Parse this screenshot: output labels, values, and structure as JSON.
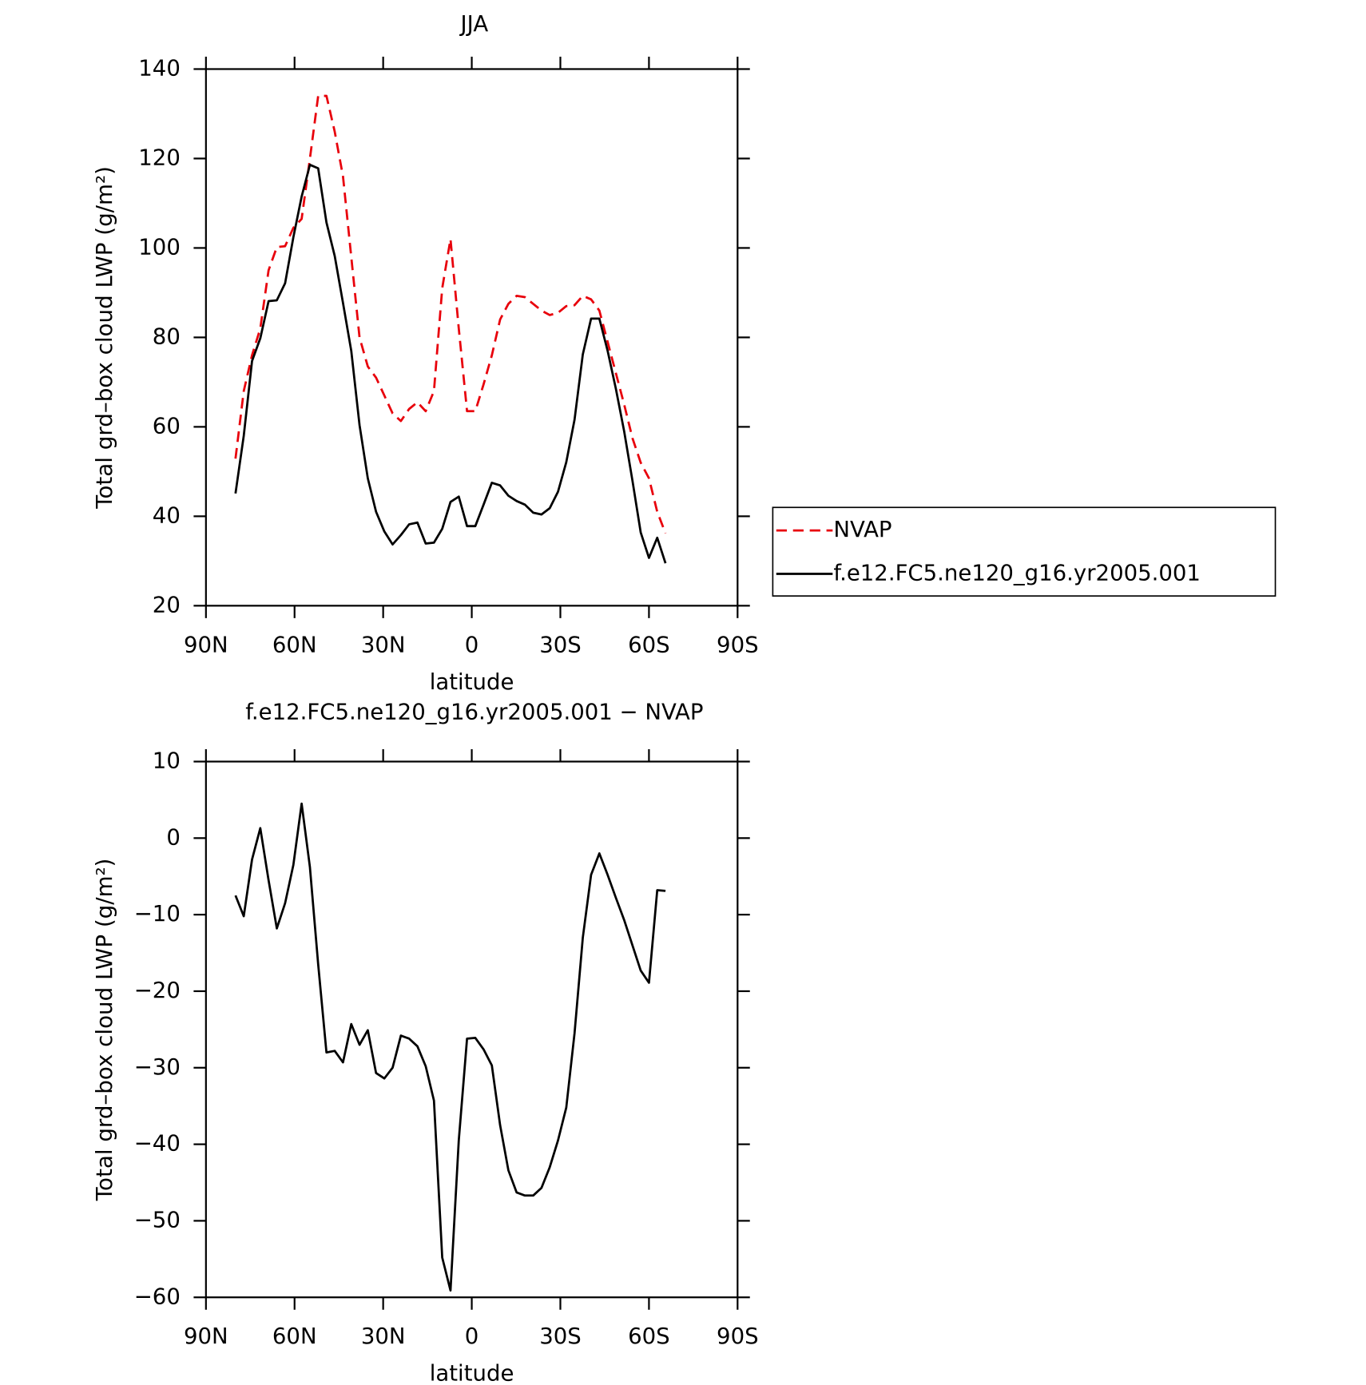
{
  "chart_data": [
    {
      "type": "line",
      "title": "JJA",
      "x_label": "latitude",
      "y_label": "Total grd–box cloud LWP (g/m²)",
      "x": [
        80,
        77.2,
        74.4,
        71.6,
        68.8,
        66,
        63.2,
        60.4,
        57.6,
        54.8,
        52,
        49.2,
        46.4,
        43.6,
        40.8,
        38,
        35.2,
        32.4,
        29.6,
        26.8,
        24,
        21.2,
        18.4,
        15.6,
        12.8,
        10,
        7.2,
        4.4,
        1.6,
        -1.2,
        -4,
        -6.8,
        -9.6,
        -12.4,
        -15.2,
        -18,
        -20.8,
        -23.6,
        -26.4,
        -29.2,
        -32,
        -34.8,
        -37.6,
        -40.4,
        -43.2,
        -46,
        -48.8,
        -51.6,
        -54.4,
        -57.2,
        -60,
        -62.8,
        -65.6
      ],
      "series": [
        {
          "name": "NVAP",
          "color": "#e8000b",
          "dashed": true,
          "values": [
            52.9,
            68,
            76,
            82,
            95,
            100.2,
            100.4,
            104.5,
            106.5,
            120,
            134,
            134,
            126,
            116,
            98,
            80,
            73.5,
            71,
            67,
            63,
            61.3,
            64,
            65.5,
            63.5,
            68,
            91,
            102,
            82,
            63.5,
            63.5,
            69.5,
            76,
            84,
            87.5,
            89.3,
            89,
            87.5,
            86,
            85,
            85.5,
            87,
            87.2,
            89.3,
            88.5,
            86,
            79,
            72,
            65,
            57.5,
            52,
            48.5,
            41,
            36.2
          ]
        },
        {
          "name": "f.e12.FC5.ne120_g16.yr2005.001",
          "color": "#000000",
          "dashed": false,
          "values": [
            45.1,
            58.0,
            74.7,
            79.8,
            88.1,
            88.3,
            92.1,
            102.4,
            111.5,
            118.6,
            117.8,
            105.7,
            98.2,
            87.7,
            77.0,
            60.4,
            48.5,
            41.0,
            36.6,
            33.7,
            35.8,
            38.2,
            38.6,
            33.9,
            34.1,
            37.2,
            43.2,
            44.4,
            37.8,
            37.8,
            42.6,
            47.5,
            46.9,
            44.6,
            43.4,
            42.6,
            40.8,
            40.4,
            41.8,
            45.5,
            52.1,
            61.6,
            76.2,
            84.2,
            84.2,
            77.0,
            68.5,
            59.0,
            48.0,
            36.4,
            30.7,
            35.2,
            29.5
          ]
        }
      ],
      "xlim": [
        90,
        -90
      ],
      "xticks": [
        {
          "value": 90,
          "label": "90N"
        },
        {
          "value": 60,
          "label": "60N"
        },
        {
          "value": 30,
          "label": "30N"
        },
        0,
        {
          "value": -30,
          "label": "30S"
        },
        {
          "value": -60,
          "label": "60S"
        },
        {
          "value": -90,
          "label": "90S"
        }
      ],
      "ylim": [
        20,
        140
      ],
      "yticks": [
        20,
        40,
        60,
        80,
        100,
        120,
        140
      ],
      "legend": "right"
    },
    {
      "type": "line",
      "title": "f.e12.FC5.ne120_g16.yr2005.001 − NVAP",
      "x_label": "latitude",
      "y_label": "Total grd–box cloud LWP (g/m²)",
      "x": [
        80,
        77.2,
        74.4,
        71.6,
        68.8,
        66,
        63.2,
        60.4,
        57.6,
        54.8,
        52,
        49.2,
        46.4,
        43.6,
        40.8,
        38,
        35.2,
        32.4,
        29.6,
        26.8,
        24,
        21.2,
        18.4,
        15.6,
        12.8,
        10,
        7.2,
        4.4,
        1.6,
        -1.2,
        -4,
        -6.8,
        -9.6,
        -12.4,
        -15.2,
        -18,
        -20.8,
        -23.6,
        -26.4,
        -29.2,
        -32,
        -34.8,
        -37.6,
        -40.4,
        -43.2,
        -46,
        -48.8,
        -51.6,
        -54.4,
        -57.2,
        -60,
        -62.8,
        -65.6
      ],
      "color": "#000000",
      "values": [
        -7.5,
        -10.2,
        -2.8,
        1.3,
        -5.5,
        -11.8,
        -8.5,
        -3.5,
        4.5,
        -3.8,
        -16.5,
        -28,
        -27.8,
        -29.3,
        -24.3,
        -27,
        -25.1,
        -30.7,
        -31.4,
        -30,
        -25.8,
        -26.2,
        -27.2,
        -29.8,
        -34.3,
        -54.8,
        -59.1,
        -39.5,
        -26.2,
        -26.1,
        -27.6,
        -29.7,
        -37.5,
        -43.4,
        -46.3,
        -46.7,
        -46.7,
        -45.7,
        -43,
        -39.5,
        -35.2,
        -25.5,
        -13,
        -4.8,
        -2,
        -4.8,
        -7.8,
        -10.7,
        -14,
        -17.3,
        -18.9,
        -6.8,
        -6.9
      ],
      "xlim": [
        90,
        -90
      ],
      "xticks": [
        {
          "value": 90,
          "label": "90N"
        },
        {
          "value": 60,
          "label": "60N"
        },
        {
          "value": 30,
          "label": "30N"
        },
        0,
        {
          "value": -30,
          "label": "30S"
        },
        {
          "value": -60,
          "label": "60S"
        },
        {
          "value": -90,
          "label": "90S"
        }
      ],
      "ylim": [
        -60,
        10
      ],
      "yticks": [
        {
          "value": -60,
          "label": "−60"
        },
        {
          "value": -50,
          "label": "−50"
        },
        {
          "value": -40,
          "label": "−40"
        },
        {
          "value": -30,
          "label": "−30"
        },
        {
          "value": -20,
          "label": "−20"
        },
        {
          "value": -10,
          "label": "−10"
        },
        0,
        10
      ]
    }
  ]
}
